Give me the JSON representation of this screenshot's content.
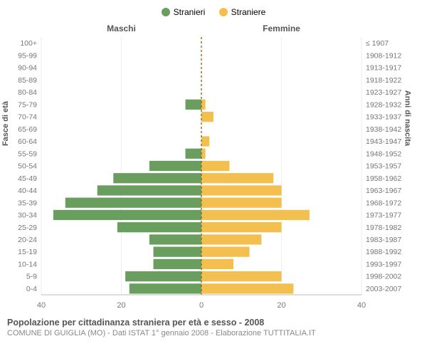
{
  "legend": {
    "male": {
      "label": "Stranieri",
      "color": "#6a9e5f"
    },
    "female": {
      "label": "Straniere",
      "color": "#f3bf4e"
    }
  },
  "headers": {
    "male": "Maschi",
    "female": "Femmine"
  },
  "axis_titles": {
    "left": "Fasce di età",
    "right": "Anni di nascita"
  },
  "x_axis": {
    "max": 40,
    "ticks": [
      40,
      20,
      0,
      20,
      40
    ]
  },
  "chart": {
    "type": "population-pyramid",
    "bar_color_male": "#6a9e5f",
    "bar_color_female": "#f3bf4e",
    "center_line_color": "#8c6d1f",
    "row_height": 16.5,
    "bar_gap": 3,
    "plot_bg": "#ffffff",
    "grid_color": "#eeeeee",
    "label_fontsize": 10.5,
    "age_groups": [
      "100+",
      "95-99",
      "90-94",
      "85-89",
      "80-84",
      "75-79",
      "70-74",
      "65-69",
      "60-64",
      "55-59",
      "50-54",
      "45-49",
      "40-44",
      "35-39",
      "30-34",
      "25-29",
      "20-24",
      "15-19",
      "10-14",
      "5-9",
      "0-4"
    ],
    "birth_years": [
      "≤ 1907",
      "1908-1912",
      "1913-1917",
      "1918-1922",
      "1923-1927",
      "1928-1932",
      "1933-1937",
      "1938-1942",
      "1943-1947",
      "1948-1952",
      "1953-1957",
      "1958-1962",
      "1963-1967",
      "1968-1972",
      "1973-1977",
      "1978-1982",
      "1983-1987",
      "1988-1992",
      "1993-1997",
      "1998-2002",
      "2003-2007"
    ],
    "male_values": [
      0,
      0,
      0,
      0,
      0,
      4,
      0,
      0,
      0,
      4,
      13,
      22,
      26,
      34,
      37,
      21,
      13,
      12,
      12,
      19,
      18
    ],
    "female_values": [
      0,
      0,
      0,
      0,
      0,
      1,
      3,
      0,
      2,
      1,
      7,
      18,
      20,
      20,
      27,
      20,
      15,
      12,
      8,
      20,
      23
    ]
  },
  "title": "Popolazione per cittadinanza straniera per età e sesso - 2008",
  "subtitle": "COMUNE DI GUIGLIA (MO) - Dati ISTAT 1° gennaio 2008 - Elaborazione TUTTITALIA.IT"
}
